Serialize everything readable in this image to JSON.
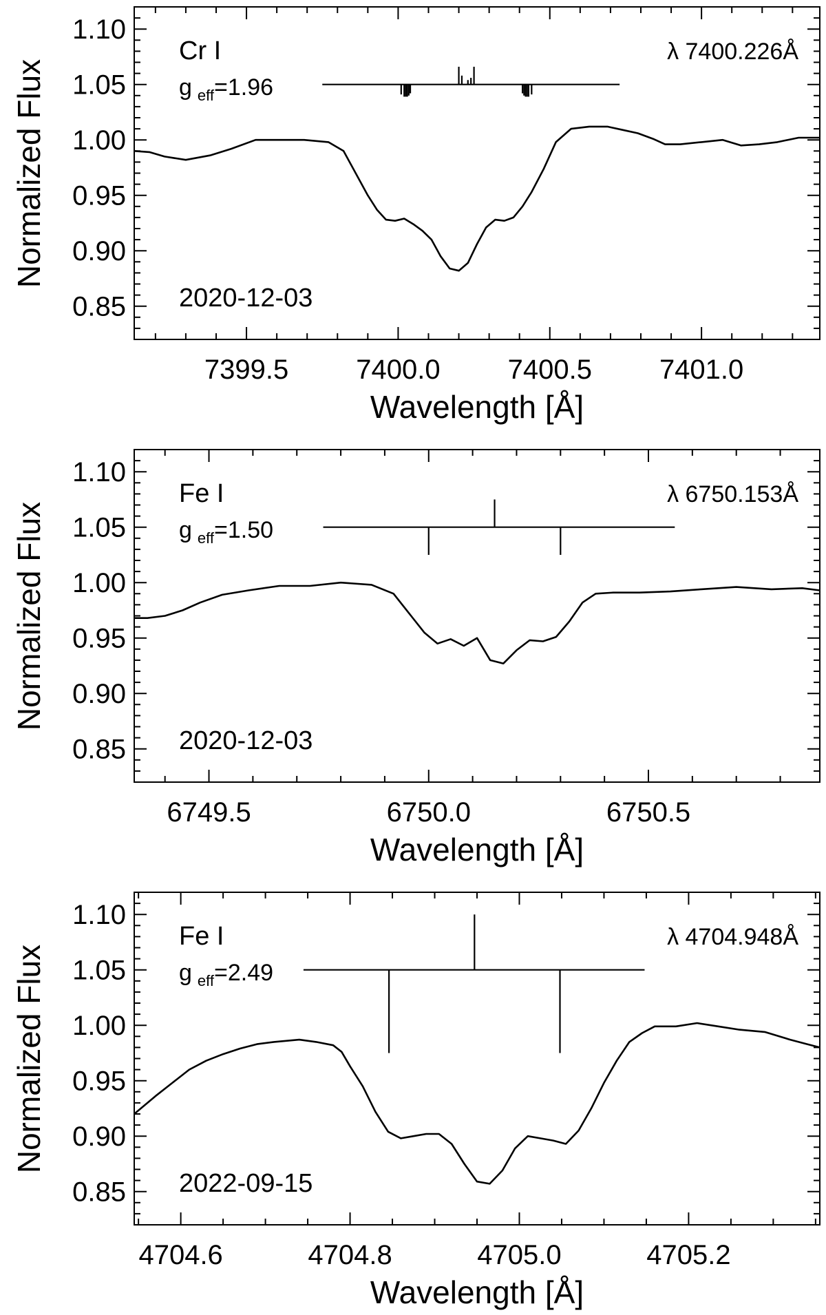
{
  "chart_data": [
    {
      "type": "line",
      "ylabel": "Normalized Flux",
      "xlabel": "Wavelength [Å]",
      "xlim": [
        7399.13,
        7401.39
      ],
      "ylim": [
        0.82,
        1.12
      ],
      "xticks": [
        7399.5,
        7400.0,
        7400.5,
        7401.0
      ],
      "xtick_labels": [
        "7399.5",
        "7400.0",
        "7400.5",
        "7401.0"
      ],
      "yticks": [
        0.85,
        0.9,
        0.95,
        1.0,
        1.05,
        1.1
      ],
      "ytick_labels": [
        "0.85",
        "0.90",
        "0.95",
        "1.00",
        "1.05",
        "1.10"
      ],
      "x_minor_step": 0.1,
      "y_minor_step": 0.01,
      "annotations": {
        "element": "Cr I",
        "g_prefix": "g",
        "g_sub": "eff",
        "g_value": "=1.96",
        "wavelength": "λ 7400.226Å",
        "date": "2020-12-03"
      },
      "zeeman": {
        "baseline": 1.05,
        "x_range": [
          7399.75,
          7400.73
        ],
        "components": [
          {
            "x": 7400.01,
            "length": -0.009
          },
          {
            "x": 7400.02,
            "length": -0.011
          },
          {
            "x": 7400.025,
            "length": -0.011
          },
          {
            "x": 7400.03,
            "length": -0.011
          },
          {
            "x": 7400.035,
            "length": -0.01
          },
          {
            "x": 7400.04,
            "length": -0.008
          },
          {
            "x": 7400.2,
            "length": 0.016
          },
          {
            "x": 7400.21,
            "length": 0.008
          },
          {
            "x": 7400.23,
            "length": 0.004
          },
          {
            "x": 7400.24,
            "length": 0.006
          },
          {
            "x": 7400.25,
            "length": 0.016
          },
          {
            "x": 7400.41,
            "length": -0.008
          },
          {
            "x": 7400.415,
            "length": -0.01
          },
          {
            "x": 7400.42,
            "length": -0.011
          },
          {
            "x": 7400.425,
            "length": -0.011
          },
          {
            "x": 7400.43,
            "length": -0.011
          },
          {
            "x": 7400.44,
            "length": -0.009
          }
        ]
      },
      "series": [
        {
          "x": [
            7399.13,
            7399.18,
            7399.23,
            7399.3,
            7399.38,
            7399.45,
            7399.53,
            7399.61,
            7399.69,
            7399.77,
            7399.82,
            7399.86,
            7399.9,
            7399.93,
            7399.96,
            7399.99,
            7400.02,
            7400.05,
            7400.08,
            7400.11,
            7400.14,
            7400.17,
            7400.2,
            7400.23,
            7400.26,
            7400.29,
            7400.32,
            7400.35,
            7400.38,
            7400.41,
            7400.44,
            7400.48,
            7400.52,
            7400.57,
            7400.63,
            7400.69,
            7400.74,
            7400.79,
            7400.84,
            7400.88,
            7400.93,
            7401.0,
            7401.07,
            7401.13,
            7401.19,
            7401.25,
            7401.32,
            7401.39
          ],
          "y": [
            0.99,
            0.989,
            0.985,
            0.982,
            0.986,
            0.992,
            1.0,
            1.0,
            1.0,
            0.998,
            0.99,
            0.97,
            0.95,
            0.937,
            0.928,
            0.927,
            0.929,
            0.924,
            0.918,
            0.91,
            0.895,
            0.884,
            0.882,
            0.889,
            0.906,
            0.921,
            0.928,
            0.927,
            0.93,
            0.94,
            0.953,
            0.974,
            0.998,
            1.01,
            1.012,
            1.012,
            1.009,
            1.006,
            1.001,
            0.996,
            0.996,
            0.998,
            1.0,
            0.995,
            0.996,
            0.998,
            1.002,
            1.002
          ]
        }
      ]
    },
    {
      "type": "line",
      "ylabel": "Normalized Flux",
      "xlabel": "Wavelength [Å]",
      "xlim": [
        6749.33,
        6750.89
      ],
      "ylim": [
        0.82,
        1.12
      ],
      "xticks": [
        6749.5,
        6750.0,
        6750.5
      ],
      "xtick_labels": [
        "6749.5",
        "6750.0",
        "6750.5"
      ],
      "yticks": [
        0.85,
        0.9,
        0.95,
        1.0,
        1.05,
        1.1
      ],
      "ytick_labels": [
        "0.85",
        "0.90",
        "0.95",
        "1.00",
        "1.05",
        "1.10"
      ],
      "x_minor_step": 0.1,
      "y_minor_step": 0.01,
      "annotations": {
        "element": "Fe I",
        "g_prefix": "g",
        "g_sub": "eff",
        "g_value": "=1.50",
        "wavelength": "λ 6750.153Å",
        "date": "2020-12-03"
      },
      "zeeman": {
        "baseline": 1.05,
        "x_range": [
          6749.76,
          6750.56
        ],
        "components": [
          {
            "x": 6750.0,
            "length": -0.025
          },
          {
            "x": 6750.15,
            "length": 0.025
          },
          {
            "x": 6750.3,
            "length": -0.025
          }
        ]
      },
      "series": [
        {
          "x": [
            6749.33,
            6749.36,
            6749.4,
            6749.44,
            6749.48,
            6749.53,
            6749.59,
            6749.66,
            6749.73,
            6749.8,
            6749.87,
            6749.92,
            6749.96,
            6749.99,
            6750.02,
            6750.05,
            6750.08,
            6750.11,
            6750.14,
            6750.17,
            6750.2,
            6750.23,
            6750.26,
            6750.29,
            6750.32,
            6750.35,
            6750.38,
            6750.42,
            6750.48,
            6750.55,
            6750.62,
            6750.7,
            6750.78,
            6750.85,
            6750.89
          ],
          "y": [
            0.968,
            0.968,
            0.97,
            0.975,
            0.982,
            0.989,
            0.993,
            0.997,
            0.997,
            1.0,
            0.998,
            0.99,
            0.97,
            0.955,
            0.945,
            0.949,
            0.943,
            0.95,
            0.93,
            0.927,
            0.939,
            0.948,
            0.947,
            0.951,
            0.965,
            0.982,
            0.99,
            0.991,
            0.991,
            0.992,
            0.994,
            0.996,
            0.994,
            0.995,
            0.993
          ]
        }
      ]
    },
    {
      "type": "line",
      "ylabel": "Normalized Flux",
      "xlabel": "Wavelength [Å]",
      "xlim": [
        4704.545,
        4705.355
      ],
      "ylim": [
        0.82,
        1.12
      ],
      "xticks": [
        4704.6,
        4704.8,
        4705.0,
        4705.2
      ],
      "xtick_labels": [
        "4704.6",
        "4704.8",
        "4705.0",
        "4705.2"
      ],
      "yticks": [
        0.85,
        0.9,
        0.95,
        1.0,
        1.05,
        1.1
      ],
      "ytick_labels": [
        "0.85",
        "0.90",
        "0.95",
        "1.00",
        "1.05",
        "1.10"
      ],
      "x_minor_step": 0.05,
      "y_minor_step": 0.01,
      "annotations": {
        "element": "Fe I",
        "g_prefix": "g",
        "g_sub": "eff",
        "g_value": "=2.49",
        "wavelength": "λ 4704.948Å",
        "date": "2022-09-15"
      },
      "zeeman": {
        "baseline": 1.05,
        "x_range": [
          4704.745,
          4705.148
        ],
        "components": [
          {
            "x": 4704.846,
            "length": -0.075
          },
          {
            "x": 4704.947,
            "length": 0.05
          },
          {
            "x": 4705.048,
            "length": -0.075
          }
        ]
      },
      "series": [
        {
          "x": [
            4704.545,
            4704.57,
            4704.59,
            4704.61,
            4704.63,
            4704.65,
            4704.67,
            4704.69,
            4704.71,
            4704.74,
            4704.76,
            4704.78,
            4704.79,
            4704.8,
            4704.815,
            4704.83,
            4704.845,
            4704.86,
            4704.875,
            4704.89,
            4704.905,
            4704.92,
            4704.935,
            4704.95,
            4704.965,
            4704.98,
            4704.995,
            4705.01,
            4705.025,
            4705.04,
            4705.055,
            4705.07,
            4705.085,
            4705.1,
            4705.115,
            4705.13,
            4705.145,
            4705.16,
            4705.185,
            4705.21,
            4705.235,
            4705.26,
            4705.29,
            4705.32,
            4705.34,
            4705.355
          ],
          "y": [
            0.92,
            0.936,
            0.948,
            0.96,
            0.968,
            0.974,
            0.979,
            0.983,
            0.985,
            0.987,
            0.985,
            0.982,
            0.976,
            0.963,
            0.945,
            0.922,
            0.904,
            0.898,
            0.9,
            0.902,
            0.902,
            0.893,
            0.875,
            0.859,
            0.857,
            0.869,
            0.889,
            0.9,
            0.898,
            0.896,
            0.893,
            0.905,
            0.925,
            0.948,
            0.968,
            0.985,
            0.993,
            0.999,
            0.999,
            1.002,
            0.999,
            0.996,
            0.994,
            0.987,
            0.983,
            0.98
          ]
        }
      ]
    }
  ]
}
